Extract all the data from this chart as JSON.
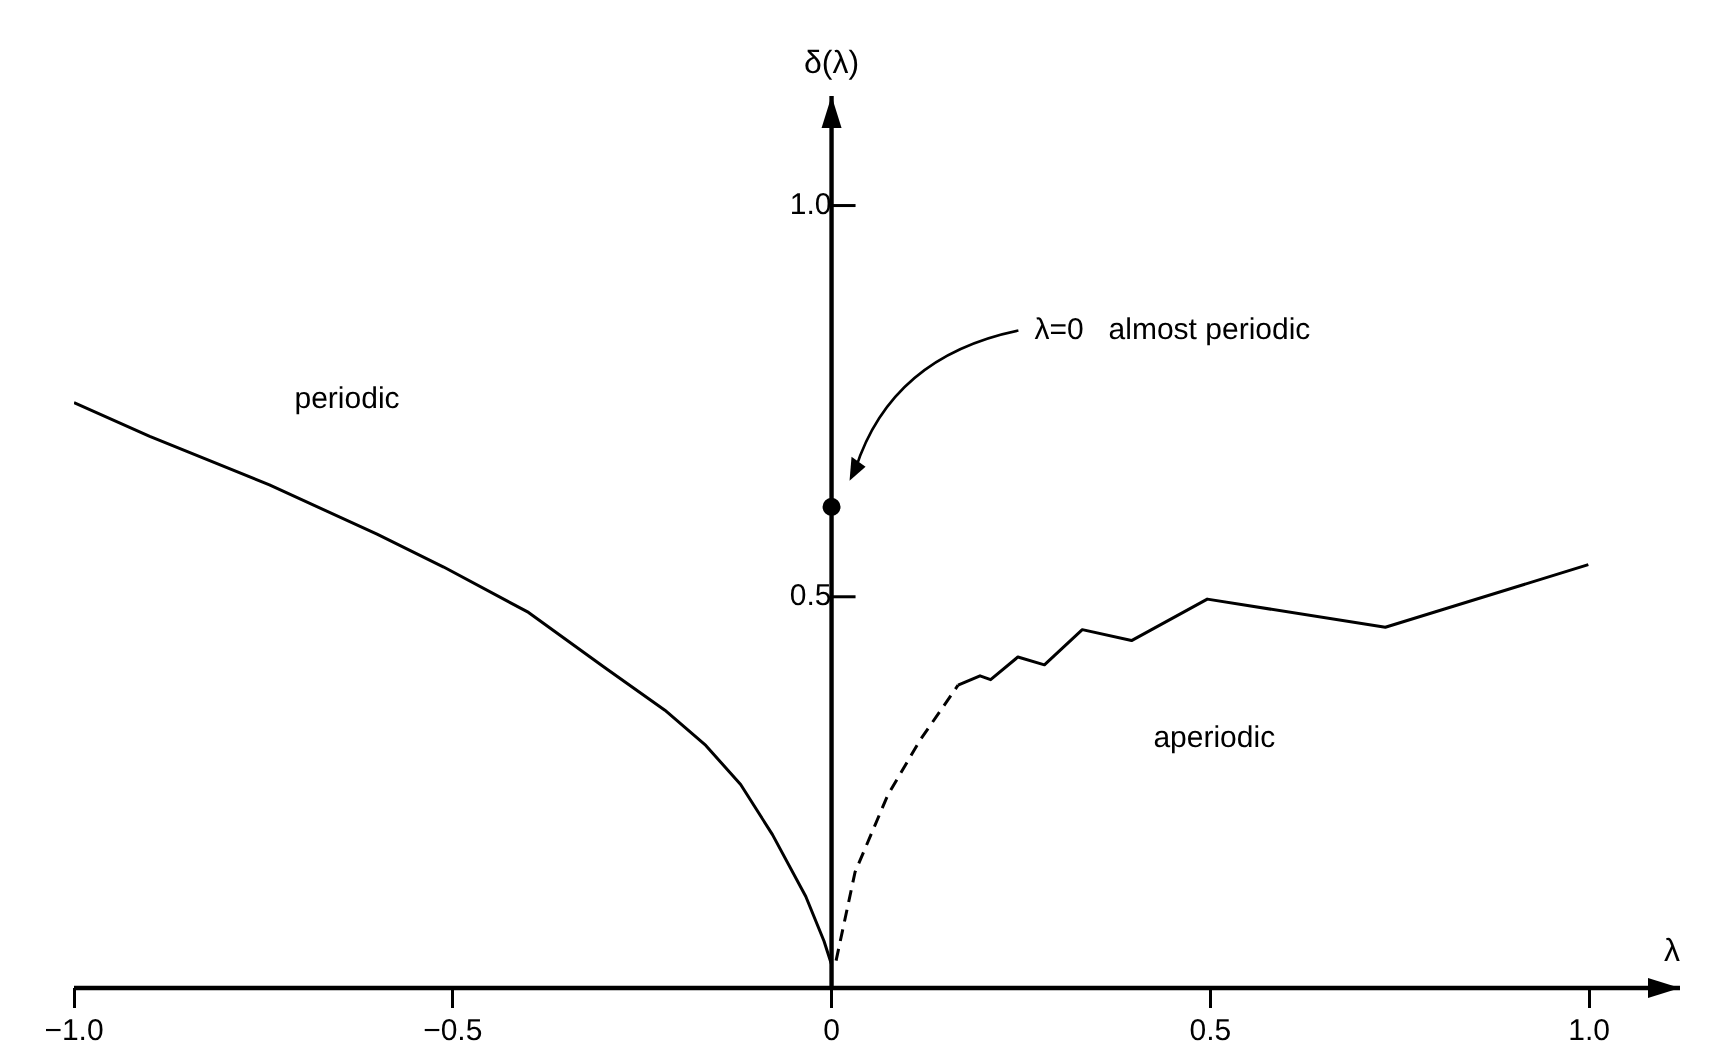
{
  "chart_data": {
    "type": "line",
    "xlabel": "λ",
    "ylabel": "δ(λ)",
    "xlim": [
      -1,
      1.12
    ],
    "ylim": [
      0,
      1.14
    ],
    "xticks": [
      {
        "value": -1,
        "label": "−1.0"
      },
      {
        "value": -0.5,
        "label": "−0.5"
      },
      0,
      0.5,
      {
        "value": 1,
        "label": "1.0"
      }
    ],
    "yticks": [
      0.5,
      {
        "value": 1,
        "label": "1.0"
      }
    ],
    "grid": false,
    "legend": false,
    "marker": "none",
    "series": [
      {
        "color": "#000000",
        "line_style": "solid",
        "x": [
          -1,
          -0.9,
          -0.742,
          -0.6,
          -0.512,
          -0.4,
          -0.3,
          -0.22,
          -0.166,
          -0.12,
          -0.078,
          -0.034,
          -0.01,
          0
        ],
        "values": [
          0.748,
          0.705,
          0.643,
          0.58,
          0.538,
          0.48,
          0.41,
          0.355,
          0.31,
          0.26,
          0.196,
          0.117,
          0.06,
          0.03
        ]
      },
      {
        "color": "#000000",
        "line_style": "dashed",
        "x": [
          0.006,
          0.031,
          0.074,
          0.117,
          0.167
        ],
        "values": [
          0.035,
          0.148,
          0.246,
          0.317,
          0.387
        ]
      },
      {
        "color": "#000000",
        "line_style": "solid",
        "x": [
          0.167,
          0.196,
          0.21,
          0.246,
          0.281,
          0.331,
          0.396,
          0.496,
          0.731,
          0.999
        ],
        "values": [
          0.387,
          0.399,
          0.394,
          0.423,
          0.413,
          0.458,
          0.444,
          0.497,
          0.461,
          0.541
        ]
      },
      {
        "type": "scatter",
        "color": "#000000",
        "marker": "circle",
        "x": [
          0
        ],
        "values": [
          0.615
        ]
      }
    ],
    "annotations": [
      "periodic",
      "aperiodic",
      "λ=0   almost periodic"
    ]
  }
}
